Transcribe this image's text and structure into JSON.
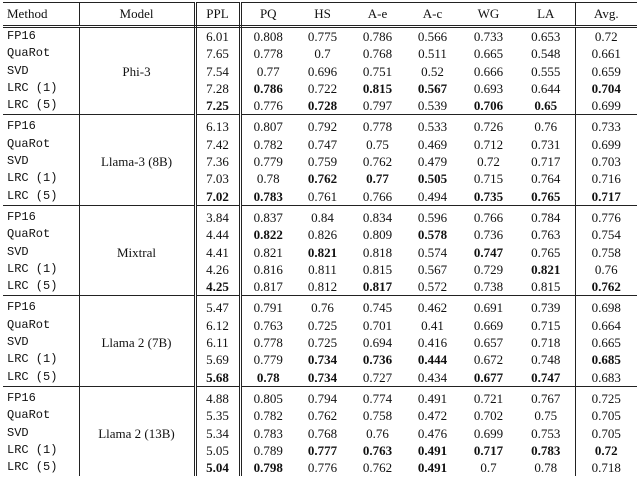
{
  "headers": [
    "Method",
    "Model",
    "PPL",
    "PQ",
    "HS",
    "A-e",
    "A-c",
    "WG",
    "LA",
    "Avg."
  ],
  "groups": [
    {
      "model": "Phi-3",
      "rows": [
        {
          "method": "FP16",
          "values": [
            "6.01",
            "0.808",
            "0.775",
            "0.786",
            "0.566",
            "0.733",
            "0.653",
            "0.72"
          ],
          "bold": []
        },
        {
          "method": "QuaRot",
          "values": [
            "7.65",
            "0.778",
            "0.7",
            "0.768",
            "0.511",
            "0.665",
            "0.548",
            "0.661"
          ],
          "bold": []
        },
        {
          "method": "SVD",
          "values": [
            "7.54",
            "0.77",
            "0.696",
            "0.751",
            "0.52",
            "0.666",
            "0.555",
            "0.659"
          ],
          "bold": []
        },
        {
          "method": "LRC (1)",
          "values": [
            "7.28",
            "0.786",
            "0.722",
            "0.815",
            "0.567",
            "0.693",
            "0.644",
            "0.704"
          ],
          "bold": [
            1,
            3,
            4,
            7
          ]
        },
        {
          "method": "LRC (5)",
          "values": [
            "7.25",
            "0.776",
            "0.728",
            "0.797",
            "0.539",
            "0.706",
            "0.65",
            "0.699"
          ],
          "bold": [
            0,
            2,
            5,
            6
          ]
        }
      ]
    },
    {
      "model": "Llama-3 (8B)",
      "rows": [
        {
          "method": "FP16",
          "values": [
            "6.13",
            "0.807",
            "0.792",
            "0.778",
            "0.533",
            "0.726",
            "0.76",
            "0.733"
          ],
          "bold": []
        },
        {
          "method": "QuaRot",
          "values": [
            "7.42",
            "0.782",
            "0.747",
            "0.75",
            "0.469",
            "0.712",
            "0.731",
            "0.699"
          ],
          "bold": []
        },
        {
          "method": "SVD",
          "values": [
            "7.36",
            "0.779",
            "0.759",
            "0.762",
            "0.479",
            "0.72",
            "0.717",
            "0.703"
          ],
          "bold": []
        },
        {
          "method": "LRC (1)",
          "values": [
            "7.03",
            "0.78",
            "0.762",
            "0.77",
            "0.505",
            "0.715",
            "0.764",
            "0.716"
          ],
          "bold": [
            2,
            3,
            4
          ]
        },
        {
          "method": "LRC (5)",
          "values": [
            "7.02",
            "0.783",
            "0.761",
            "0.766",
            "0.494",
            "0.735",
            "0.765",
            "0.717"
          ],
          "bold": [
            0,
            1,
            5,
            6,
            7
          ]
        }
      ]
    },
    {
      "model": "Mixtral",
      "rows": [
        {
          "method": "FP16",
          "values": [
            "3.84",
            "0.837",
            "0.84",
            "0.834",
            "0.596",
            "0.766",
            "0.784",
            "0.776"
          ],
          "bold": []
        },
        {
          "method": "QuaRot",
          "values": [
            "4.44",
            "0.822",
            "0.826",
            "0.809",
            "0.578",
            "0.736",
            "0.763",
            "0.754"
          ],
          "bold": [
            1,
            4
          ]
        },
        {
          "method": "SVD",
          "values": [
            "4.41",
            "0.821",
            "0.821",
            "0.818",
            "0.574",
            "0.747",
            "0.765",
            "0.758"
          ],
          "bold": [
            2,
            5
          ]
        },
        {
          "method": "LRC (1)",
          "values": [
            "4.26",
            "0.816",
            "0.811",
            "0.815",
            "0.567",
            "0.729",
            "0.821",
            "0.76"
          ],
          "bold": [
            6
          ]
        },
        {
          "method": "LRC (5)",
          "values": [
            "4.25",
            "0.817",
            "0.812",
            "0.817",
            "0.572",
            "0.738",
            "0.815",
            "0.762"
          ],
          "bold": [
            0,
            3,
            7
          ]
        }
      ]
    },
    {
      "model": "Llama 2 (7B)",
      "rows": [
        {
          "method": "FP16",
          "values": [
            "5.47",
            "0.791",
            "0.76",
            "0.745",
            "0.462",
            "0.691",
            "0.739",
            "0.698"
          ],
          "bold": []
        },
        {
          "method": "QuaRot",
          "values": [
            "6.12",
            "0.763",
            "0.725",
            "0.701",
            "0.41",
            "0.669",
            "0.715",
            "0.664"
          ],
          "bold": []
        },
        {
          "method": "SVD",
          "values": [
            "6.11",
            "0.778",
            "0.725",
            "0.694",
            "0.416",
            "0.657",
            "0.718",
            "0.665"
          ],
          "bold": []
        },
        {
          "method": "LRC (1)",
          "values": [
            "5.69",
            "0.779",
            "0.734",
            "0.736",
            "0.444",
            "0.672",
            "0.748",
            "0.685"
          ],
          "bold": [
            2,
            3,
            4,
            7
          ]
        },
        {
          "method": "LRC (5)",
          "values": [
            "5.68",
            "0.78",
            "0.734",
            "0.727",
            "0.434",
            "0.677",
            "0.747",
            "0.683"
          ],
          "bold": [
            0,
            1,
            2,
            5,
            6
          ]
        }
      ]
    },
    {
      "model": "Llama 2 (13B)",
      "rows": [
        {
          "method": "FP16",
          "values": [
            "4.88",
            "0.805",
            "0.794",
            "0.774",
            "0.491",
            "0.721",
            "0.767",
            "0.725"
          ],
          "bold": []
        },
        {
          "method": "QuaRot",
          "values": [
            "5.35",
            "0.782",
            "0.762",
            "0.758",
            "0.472",
            "0.702",
            "0.75",
            "0.705"
          ],
          "bold": []
        },
        {
          "method": "SVD",
          "values": [
            "5.34",
            "0.783",
            "0.768",
            "0.76",
            "0.476",
            "0.699",
            "0.753",
            "0.705"
          ],
          "bold": []
        },
        {
          "method": "LRC (1)",
          "values": [
            "5.05",
            "0.789",
            "0.777",
            "0.763",
            "0.491",
            "0.717",
            "0.783",
            "0.72"
          ],
          "bold": [
            2,
            3,
            4,
            5,
            6,
            7
          ]
        },
        {
          "method": "LRC (5)",
          "values": [
            "5.04",
            "0.798",
            "0.776",
            "0.762",
            "0.491",
            "0.7",
            "0.78",
            "0.718"
          ],
          "bold": [
            0,
            1,
            4
          ]
        }
      ]
    }
  ]
}
